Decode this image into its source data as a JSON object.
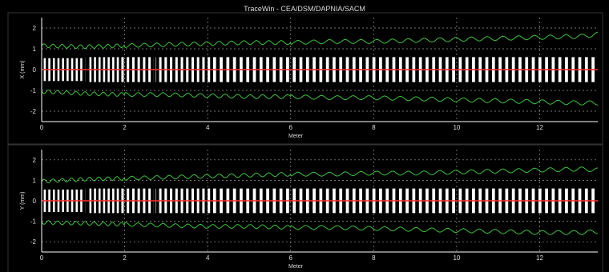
{
  "window": {
    "title": "TraceWin - CEA/DSM/DAPNIA/SACM"
  },
  "colors": {
    "background": "#000000",
    "axis": "#ffffff",
    "grid": "#9a9a9a",
    "envelope": "#3fbf3f",
    "elements": "#ffffff",
    "centroid": "#ff2a2a",
    "text": "#dddddd"
  },
  "chart_data": [
    {
      "type": "line",
      "xlabel": "Meter",
      "ylabel": "X (mm)",
      "xlim": [
        0,
        13.4
      ],
      "ylim": [
        -2.5,
        2.5
      ],
      "xticks": [
        "0",
        "2",
        "4",
        "6",
        "8",
        "10",
        "12"
      ],
      "yticks": [
        "2",
        "1",
        "0",
        "-1",
        "-2"
      ],
      "grid": true,
      "series": [
        {
          "x": [
            0,
            1,
            2,
            3,
            4,
            5,
            6,
            7,
            8,
            9,
            10,
            11,
            12,
            13,
            13.4
          ],
          "y": [
            1.15,
            1.1,
            1.15,
            1.2,
            1.25,
            1.3,
            1.3,
            1.35,
            1.35,
            1.4,
            1.45,
            1.5,
            1.55,
            1.6,
            1.7
          ]
        },
        {
          "x": [
            0,
            1,
            2,
            3,
            4,
            5,
            6,
            7,
            8,
            9,
            10,
            11,
            12,
            13,
            13.4
          ],
          "y": [
            -1.05,
            -1.15,
            -1.2,
            -1.2,
            -1.25,
            -1.3,
            -1.3,
            -1.35,
            -1.35,
            -1.4,
            -1.45,
            -1.5,
            -1.55,
            -1.6,
            -1.6
          ]
        },
        {
          "x": [
            0,
            13.4
          ],
          "y": [
            0,
            0
          ]
        }
      ]
    },
    {
      "type": "line",
      "xlabel": "Meter",
      "ylabel": "Y (mm)",
      "xlim": [
        0,
        13.4
      ],
      "ylim": [
        -2.5,
        2.5
      ],
      "xticks": [
        "0",
        "2",
        "4",
        "6",
        "8",
        "10",
        "12"
      ],
      "yticks": [
        "2",
        "1",
        "0",
        "-1",
        "-2"
      ],
      "grid": true,
      "series": [
        {
          "x": [
            0,
            1,
            2,
            3,
            4,
            5,
            6,
            7,
            8,
            9,
            10,
            11,
            12,
            13,
            13.4
          ],
          "y": [
            0.95,
            1.05,
            1.1,
            1.15,
            1.2,
            1.25,
            1.3,
            1.3,
            1.35,
            1.35,
            1.4,
            1.45,
            1.5,
            1.55,
            1.5
          ]
        },
        {
          "x": [
            0,
            1,
            2,
            3,
            4,
            5,
            6,
            7,
            8,
            9,
            10,
            11,
            12,
            13,
            13.4
          ],
          "y": [
            -1.05,
            -1.1,
            -1.15,
            -1.2,
            -1.25,
            -1.25,
            -1.3,
            -1.3,
            -1.35,
            -1.4,
            -1.45,
            -1.5,
            -1.55,
            -1.55,
            -1.5
          ]
        },
        {
          "x": [
            0,
            13.4
          ],
          "y": [
            0,
            0
          ]
        }
      ]
    }
  ]
}
